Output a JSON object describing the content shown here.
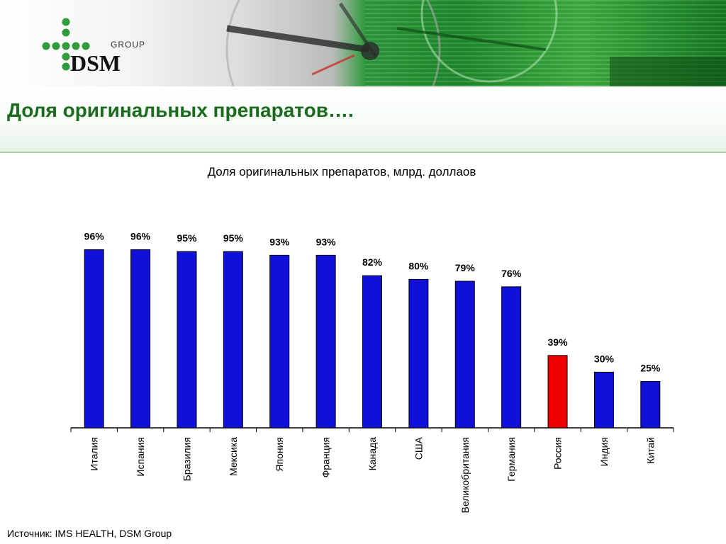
{
  "logo": {
    "group_text": "GROUP",
    "brand_text": "DSM"
  },
  "slide": {
    "title": "Доля оригинальных препаратов….",
    "source": "Источник: IMS HEALTH, DSM Group"
  },
  "colors": {
    "bar": "#1010d8",
    "highlight": "#ee0000",
    "title_green": "#1b6b1f"
  },
  "chart_data": {
    "type": "bar",
    "title": "Доля оригинальных препаратов, млрд. доллаов",
    "categories": [
      "Италия",
      "Испания",
      "Бразилия",
      "Мексика",
      "Япония",
      "Франция",
      "Канада",
      "США",
      "Великобритания",
      "Германия",
      "Россия",
      "Индия",
      "Китай"
    ],
    "values": [
      96,
      96,
      95,
      95,
      93,
      93,
      82,
      80,
      79,
      76,
      39,
      30,
      25
    ],
    "value_labels": [
      "96%",
      "96%",
      "95%",
      "95%",
      "93%",
      "93%",
      "82%",
      "80%",
      "79%",
      "76%",
      "39%",
      "30%",
      "25%"
    ],
    "highlight_category": "Россия",
    "xlabel": "",
    "ylabel": "",
    "ylim": [
      0,
      100
    ],
    "grid": false,
    "legend": "none"
  }
}
